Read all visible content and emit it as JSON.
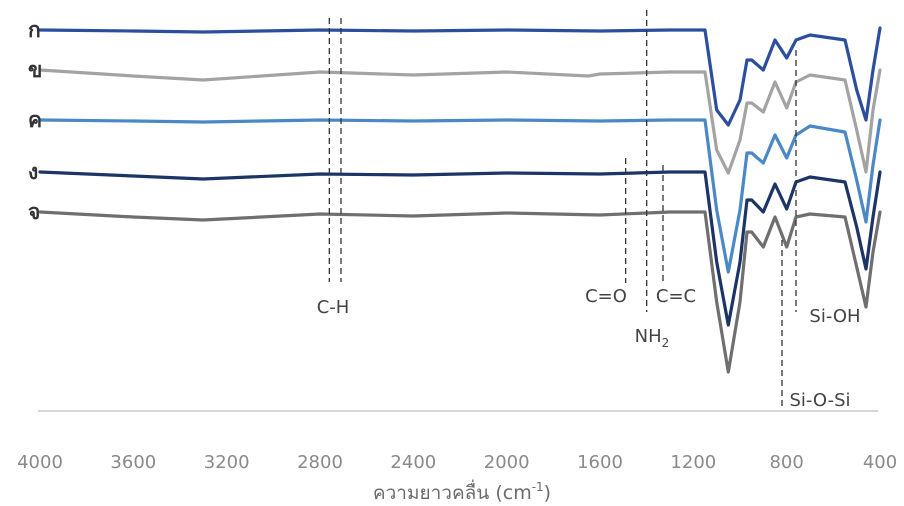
{
  "chart_data": {
    "type": "line",
    "xlabel": "ความยาวคลื่น (cm",
    "xlabel_sup": "-1",
    "xlabel_end": ")",
    "xlim": [
      4000,
      400
    ],
    "x_ticks": [
      "4000",
      "3600",
      "3200",
      "2800",
      "2400",
      "2000",
      "1600",
      "1200",
      "800",
      "400"
    ],
    "grid": false,
    "legend": "labels at left of each curve",
    "series": [
      {
        "name": "ก",
        "color": "#2b4f9e",
        "baseline": 30,
        "points": [
          [
            4000,
            0
          ],
          [
            3600,
            1
          ],
          [
            3300,
            2
          ],
          [
            2800,
            0
          ],
          [
            2400,
            1
          ],
          [
            2000,
            0
          ],
          [
            1600,
            1
          ],
          [
            1300,
            0
          ],
          [
            1150,
            0
          ],
          [
            1100,
            80
          ],
          [
            1050,
            95
          ],
          [
            1000,
            70
          ],
          [
            970,
            30
          ],
          [
            950,
            30
          ],
          [
            900,
            40
          ],
          [
            850,
            10
          ],
          [
            800,
            28
          ],
          [
            760,
            10
          ],
          [
            700,
            5
          ],
          [
            550,
            10
          ],
          [
            500,
            60
          ],
          [
            460,
            90
          ],
          [
            430,
            40
          ],
          [
            400,
            -2
          ]
        ]
      },
      {
        "name": "ข",
        "color": "#a3a3a3",
        "baseline": 70,
        "points": [
          [
            4000,
            0
          ],
          [
            3600,
            6
          ],
          [
            3300,
            10
          ],
          [
            2800,
            2
          ],
          [
            2400,
            5
          ],
          [
            2000,
            2
          ],
          [
            1650,
            6
          ],
          [
            1600,
            4
          ],
          [
            1300,
            2
          ],
          [
            1150,
            2
          ],
          [
            1100,
            80
          ],
          [
            1050,
            103
          ],
          [
            1000,
            70
          ],
          [
            970,
            33
          ],
          [
            950,
            33
          ],
          [
            900,
            42
          ],
          [
            850,
            12
          ],
          [
            800,
            38
          ],
          [
            760,
            12
          ],
          [
            700,
            5
          ],
          [
            550,
            10
          ],
          [
            500,
            60
          ],
          [
            460,
            102
          ],
          [
            430,
            40
          ],
          [
            400,
            0
          ]
        ]
      },
      {
        "name": "ค",
        "color": "#4b88c8",
        "baseline": 120,
        "points": [
          [
            4000,
            0
          ],
          [
            3600,
            1
          ],
          [
            3300,
            2
          ],
          [
            2800,
            0
          ],
          [
            2400,
            1
          ],
          [
            2000,
            0
          ],
          [
            1600,
            1
          ],
          [
            1300,
            0
          ],
          [
            1150,
            0
          ],
          [
            1100,
            90
          ],
          [
            1050,
            152
          ],
          [
            1000,
            90
          ],
          [
            970,
            33
          ],
          [
            950,
            33
          ],
          [
            900,
            43
          ],
          [
            850,
            15
          ],
          [
            800,
            38
          ],
          [
            760,
            15
          ],
          [
            700,
            6
          ],
          [
            550,
            12
          ],
          [
            500,
            60
          ],
          [
            460,
            102
          ],
          [
            430,
            45
          ],
          [
            400,
            0
          ]
        ]
      },
      {
        "name": "ง",
        "color": "#1c3466",
        "baseline": 172,
        "points": [
          [
            4000,
            0
          ],
          [
            3600,
            4
          ],
          [
            3300,
            7
          ],
          [
            2800,
            2
          ],
          [
            2400,
            3
          ],
          [
            2000,
            1
          ],
          [
            1600,
            2
          ],
          [
            1300,
            0
          ],
          [
            1150,
            0
          ],
          [
            1100,
            90
          ],
          [
            1050,
            153
          ],
          [
            1000,
            90
          ],
          [
            970,
            28
          ],
          [
            950,
            28
          ],
          [
            900,
            40
          ],
          [
            850,
            12
          ],
          [
            800,
            37
          ],
          [
            760,
            10
          ],
          [
            700,
            5
          ],
          [
            550,
            10
          ],
          [
            500,
            55
          ],
          [
            460,
            97
          ],
          [
            430,
            45
          ],
          [
            400,
            0
          ]
        ]
      },
      {
        "name": "จ",
        "color": "#6f6f6f",
        "baseline": 212,
        "points": [
          [
            4000,
            0
          ],
          [
            3600,
            5
          ],
          [
            3300,
            8
          ],
          [
            2800,
            2
          ],
          [
            2400,
            4
          ],
          [
            2000,
            1
          ],
          [
            1600,
            3
          ],
          [
            1300,
            0
          ],
          [
            1150,
            0
          ],
          [
            1100,
            90
          ],
          [
            1050,
            160
          ],
          [
            1000,
            90
          ],
          [
            970,
            20
          ],
          [
            950,
            20
          ],
          [
            900,
            35
          ],
          [
            850,
            5
          ],
          [
            800,
            35
          ],
          [
            760,
            5
          ],
          [
            700,
            2
          ],
          [
            550,
            5
          ],
          [
            500,
            55
          ],
          [
            460,
            95
          ],
          [
            430,
            40
          ],
          [
            400,
            0
          ]
        ]
      }
    ],
    "annotations": [
      {
        "label": "C-H",
        "sub": "",
        "x": [
          2760,
          2710
        ]
      },
      {
        "label": "NH",
        "sub": "2",
        "x": [
          1400
        ]
      },
      {
        "label": "C=O",
        "sub": "",
        "x": [
          1490
        ]
      },
      {
        "label": "C=C",
        "sub": "",
        "x": [
          1330
        ]
      },
      {
        "label": "Si-O-Si",
        "sub": "",
        "x": [
          820
        ]
      },
      {
        "label": "Si-OH",
        "sub": "",
        "x": [
          760
        ]
      }
    ]
  }
}
